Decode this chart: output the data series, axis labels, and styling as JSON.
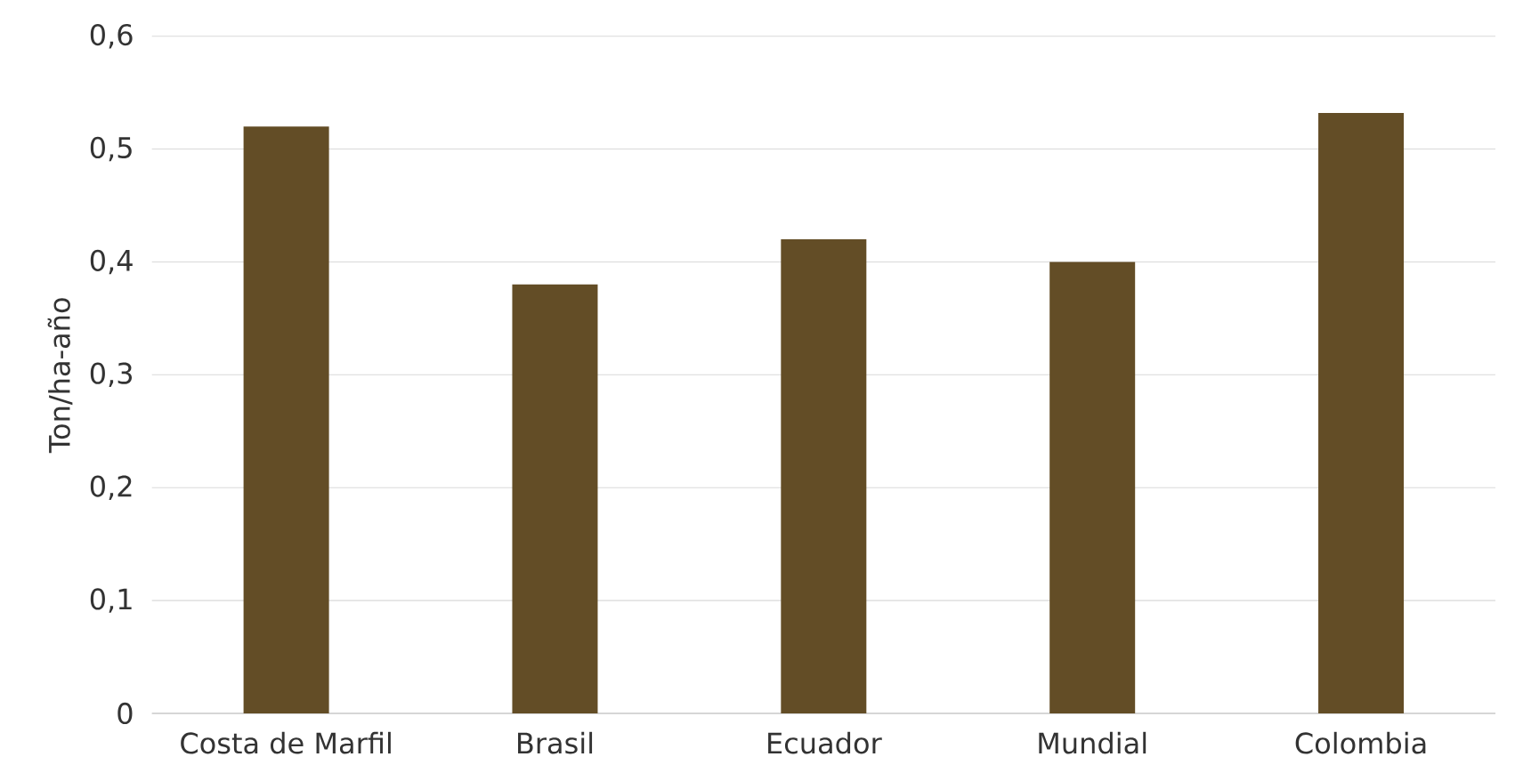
{
  "chart_data": {
    "type": "bar",
    "ylabel": "Ton/ha-año",
    "categories": [
      "Costa de Marfil",
      "Brasil",
      "Ecuador",
      "Mundial",
      "Colombia"
    ],
    "values": [
      0.52,
      0.38,
      0.42,
      0.4,
      0.532
    ],
    "color": "#634d26",
    "ylim": [
      0,
      0.6
    ],
    "yticks": [
      0,
      {
        "value": 0.1,
        "label": "0,1"
      },
      {
        "value": 0.2,
        "label": "0,2"
      },
      {
        "value": 0.3,
        "label": "0,3"
      },
      {
        "value": 0.4,
        "label": "0,4"
      },
      {
        "value": 0.5,
        "label": "0,5"
      },
      {
        "value": 0.6,
        "label": "0,6"
      }
    ],
    "grid": "y"
  }
}
